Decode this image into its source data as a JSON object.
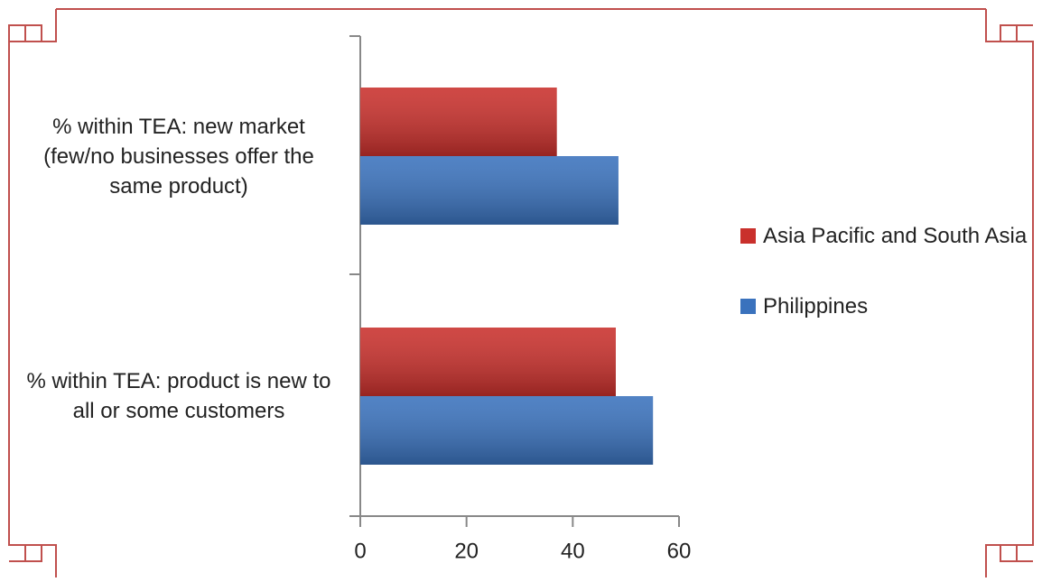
{
  "chart_data": {
    "type": "hbar",
    "categories": [
      "% within TEA: new market (few/no businesses offer the same product)",
      "% within TEA: product is new to all or some customers"
    ],
    "series": [
      {
        "name": "Asia Pacific and South Asia",
        "color": "#c9302c",
        "values": [
          37,
          48.1
        ]
      },
      {
        "name": "Philippines",
        "color": "#3a72bd",
        "values": [
          48.6,
          55.1
        ]
      }
    ],
    "xlim": [
      0,
      60
    ],
    "xticks": [
      0,
      20,
      40,
      60
    ],
    "legend": "right"
  }
}
